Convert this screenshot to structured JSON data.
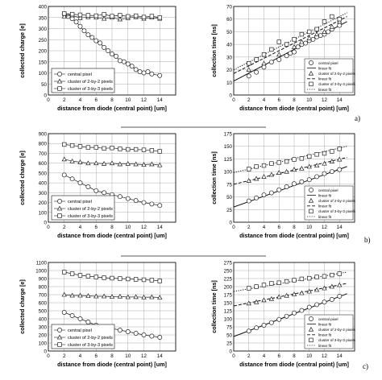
{
  "figure": {
    "panels": [
      {
        "letter": "a)"
      },
      {
        "letter": "b)"
      },
      {
        "letter": "c)"
      }
    ]
  },
  "chart_data": [
    {
      "type": "scatter",
      "row": 0,
      "side": "left",
      "xlabel": "distance from diode (central point) [um]",
      "ylabel": "collected charge [e]",
      "xlim": [
        0,
        16
      ],
      "ylim": [
        0,
        400
      ],
      "xticks": [
        0,
        2,
        4,
        6,
        8,
        10,
        12,
        14
      ],
      "yticks": [
        0,
        50,
        100,
        150,
        200,
        250,
        300,
        350,
        400
      ],
      "grid": true,
      "legend": {
        "position": "bottom-left",
        "entries": [
          "central pixel",
          "cluster of 2-by-2 pixels",
          "cluster of 3-by-3 pixels"
        ]
      },
      "series": [
        {
          "name": "central pixel",
          "marker": "circle",
          "x": [
            2,
            2.5,
            3,
            3.5,
            4,
            4.5,
            5,
            5.5,
            6,
            6.5,
            7,
            7.5,
            8,
            8.5,
            9,
            9.5,
            10,
            10.5,
            11,
            11.5,
            12,
            12.5,
            13,
            14
          ],
          "y": [
            365,
            355,
            345,
            330,
            310,
            290,
            272,
            260,
            245,
            235,
            215,
            200,
            185,
            175,
            155,
            150,
            140,
            130,
            115,
            105,
            100,
            105,
            95,
            88
          ]
        },
        {
          "name": "cluster of 2-by-2 pixels",
          "marker": "triangle",
          "x": [
            2,
            3,
            4,
            5,
            6,
            7,
            8,
            9,
            10,
            11,
            12,
            13,
            14
          ],
          "y": [
            355,
            360,
            348,
            352,
            350,
            345,
            350,
            342,
            348,
            352,
            345,
            350,
            345
          ]
        },
        {
          "name": "cluster of 3-by-3 pixels",
          "marker": "square",
          "x": [
            2,
            3,
            4,
            5,
            6,
            7,
            8,
            9,
            10,
            11,
            12,
            13,
            14
          ],
          "y": [
            368,
            365,
            362,
            360,
            358,
            364,
            356,
            360,
            355,
            358,
            352,
            356,
            350
          ]
        }
      ]
    },
    {
      "type": "scatter",
      "row": 0,
      "side": "right",
      "xlabel": "distance from diode (central point) [um]",
      "ylabel": "collection time [ns]",
      "xlim": [
        0,
        16
      ],
      "ylim": [
        0,
        70
      ],
      "xticks": [
        0,
        2,
        4,
        6,
        8,
        10,
        12,
        14
      ],
      "yticks": [
        0,
        10,
        20,
        30,
        40,
        50,
        60,
        70
      ],
      "grid": true,
      "legend": {
        "position": "bottom-right",
        "entries": [
          "central pixel",
          "linear fit",
          "cluster of 2-by-2 pixels",
          "linear fit",
          "cluster of 3-by-3 pixels",
          "linear fit"
        ]
      },
      "series": [
        {
          "name": "central pixel",
          "marker": "circle",
          "x": [
            2,
            3,
            4,
            5,
            6,
            7,
            7.5,
            8,
            8.5,
            9,
            9.5,
            10,
            10.5,
            11,
            11.5,
            12,
            12.5,
            13,
            14
          ],
          "y": [
            15,
            18,
            22,
            26,
            28,
            31,
            33,
            34,
            38,
            40,
            41,
            43,
            44,
            46,
            47,
            48,
            50,
            52,
            55
          ]
        },
        {
          "name": "cluster of 2-by-2 pixels",
          "marker": "triangle",
          "x": [
            2,
            4,
            6,
            8,
            9,
            10,
            11,
            12,
            13,
            14
          ],
          "y": [
            20,
            25,
            32,
            38,
            42,
            45,
            48,
            50,
            54,
            58
          ]
        },
        {
          "name": "cluster of 3-by-3 pixels",
          "marker": "square",
          "x": [
            2,
            3,
            4,
            5,
            6,
            7,
            8,
            9,
            10,
            11,
            12,
            13,
            14
          ],
          "y": [
            25,
            28,
            32,
            36,
            42,
            40,
            44,
            48,
            50,
            52,
            58,
            62,
            60
          ]
        }
      ],
      "fits": [
        {
          "label": "linear fit",
          "style": "solid",
          "x": [
            0,
            15
          ],
          "y": [
            11,
            58
          ]
        },
        {
          "label": "linear fit",
          "style": "dashed",
          "x": [
            0,
            15
          ],
          "y": [
            17,
            62
          ]
        },
        {
          "label": "linear fit",
          "style": "dotted",
          "x": [
            0,
            15
          ],
          "y": [
            20,
            65
          ]
        }
      ]
    },
    {
      "type": "scatter",
      "row": 1,
      "side": "left",
      "xlabel": "distance from diode (central point) [um]",
      "ylabel": "collected charge [e]",
      "xlim": [
        0,
        16
      ],
      "ylim": [
        0,
        900
      ],
      "xticks": [
        0,
        2,
        4,
        6,
        8,
        10,
        12,
        14
      ],
      "yticks": [
        0,
        100,
        200,
        300,
        400,
        500,
        600,
        700,
        800,
        900
      ],
      "grid": true,
      "legend": {
        "position": "bottom-left",
        "entries": [
          "central pixel",
          "cluster of 2-by-2 pixels",
          "cluster of 3-by-3 pixels"
        ]
      },
      "series": [
        {
          "name": "central pixel",
          "marker": "circle",
          "x": [
            2,
            3,
            4,
            5,
            6,
            7,
            8,
            9,
            10,
            11,
            12,
            13,
            14
          ],
          "y": [
            480,
            440,
            400,
            360,
            320,
            300,
            280,
            260,
            240,
            220,
            200,
            185,
            170
          ]
        },
        {
          "name": "cluster of 2-by-2 pixels",
          "marker": "triangle",
          "x": [
            2,
            3,
            4,
            5,
            6,
            7,
            8,
            9,
            10,
            11,
            12,
            13,
            14
          ],
          "y": [
            640,
            620,
            610,
            600,
            600,
            595,
            600,
            590,
            595,
            590,
            585,
            590,
            580
          ]
        },
        {
          "name": "cluster of 3-by-3 pixels",
          "marker": "square",
          "x": [
            2,
            3,
            4,
            5,
            6,
            7,
            8,
            9,
            10,
            11,
            12,
            13,
            14
          ],
          "y": [
            790,
            780,
            770,
            760,
            760,
            750,
            755,
            745,
            740,
            740,
            735,
            730,
            720
          ]
        }
      ]
    },
    {
      "type": "scatter",
      "row": 1,
      "side": "right",
      "xlabel": "distance from diode (central point) [um]",
      "ylabel": "collection time [ns]",
      "xlim": [
        0,
        16
      ],
      "ylim": [
        0,
        175
      ],
      "xticks": [
        0,
        2,
        4,
        6,
        8,
        10,
        12,
        14
      ],
      "yticks": [
        0,
        25,
        50,
        75,
        100,
        125,
        150,
        175
      ],
      "grid": true,
      "legend": {
        "position": "bottom-right",
        "entries": [
          "central pixel",
          "linear fit",
          "cluster of 2-by-2 pixels",
          "linear fit",
          "cluster of 3-by-3 pixels",
          "linear fit"
        ]
      },
      "series": [
        {
          "name": "central pixel",
          "marker": "circle",
          "x": [
            2,
            3,
            4,
            5,
            6,
            7,
            8,
            9,
            10,
            11,
            12,
            13,
            14
          ],
          "y": [
            42,
            48,
            54,
            58,
            64,
            70,
            76,
            80,
            84,
            90,
            96,
            100,
            104
          ]
        },
        {
          "name": "cluster of 2-by-2 pixels",
          "marker": "triangle",
          "x": [
            2,
            3,
            4,
            5,
            6,
            7,
            8,
            9,
            10,
            11,
            12,
            13,
            14
          ],
          "y": [
            82,
            86,
            90,
            94,
            98,
            100,
            104,
            106,
            110,
            112,
            116,
            120,
            124
          ]
        },
        {
          "name": "cluster of 3-by-3 pixels",
          "marker": "square",
          "x": [
            2,
            3,
            4,
            5,
            6,
            7,
            8,
            9,
            10,
            11,
            12,
            13,
            14
          ],
          "y": [
            105,
            110,
            112,
            116,
            118,
            120,
            124,
            126,
            130,
            134,
            136,
            140,
            145
          ]
        }
      ],
      "fits": [
        {
          "label": "linear fit",
          "style": "solid",
          "x": [
            0,
            15
          ],
          "y": [
            30,
            110
          ]
        },
        {
          "label": "linear fit",
          "style": "dashed",
          "x": [
            0,
            15
          ],
          "y": [
            75,
            128
          ]
        },
        {
          "label": "linear fit",
          "style": "dotted",
          "x": [
            0,
            15
          ],
          "y": [
            98,
            150
          ]
        }
      ]
    },
    {
      "type": "scatter",
      "row": 2,
      "side": "left",
      "xlabel": "distance from diode (central point) [um]",
      "ylabel": "collected charge [e]",
      "xlim": [
        0,
        16
      ],
      "ylim": [
        0,
        1100
      ],
      "xticks": [
        0,
        2,
        4,
        6,
        8,
        10,
        12,
        14
      ],
      "yticks": [
        0,
        100,
        200,
        300,
        400,
        500,
        600,
        700,
        800,
        900,
        1000,
        1100
      ],
      "grid": true,
      "legend": {
        "position": "bottom-left",
        "entries": [
          "central pixel",
          "cluster of 2-by-2 pixels",
          "cluster of 3-by-3 pixels"
        ]
      },
      "series": [
        {
          "name": "central pixel",
          "marker": "circle",
          "x": [
            2,
            3,
            4,
            5,
            6,
            7,
            8,
            9,
            10,
            11,
            12,
            13,
            14
          ],
          "y": [
            480,
            440,
            400,
            360,
            320,
            300,
            280,
            260,
            240,
            220,
            200,
            185,
            170
          ]
        },
        {
          "name": "cluster of 2-by-2 pixels",
          "marker": "triangle",
          "x": [
            2,
            3,
            4,
            5,
            6,
            7,
            8,
            9,
            10,
            11,
            12,
            13,
            14
          ],
          "y": [
            700,
            690,
            690,
            685,
            680,
            680,
            675,
            678,
            670,
            672,
            668,
            670,
            665
          ]
        },
        {
          "name": "cluster of 3-by-3 pixels",
          "marker": "square",
          "x": [
            2,
            3,
            4,
            5,
            6,
            7,
            8,
            9,
            10,
            11,
            12,
            13,
            14
          ],
          "y": [
            980,
            960,
            940,
            930,
            920,
            910,
            905,
            900,
            895,
            890,
            885,
            880,
            870
          ]
        }
      ]
    },
    {
      "type": "scatter",
      "row": 2,
      "side": "right",
      "xlabel": "distance from diode (central point) [um]",
      "ylabel": "collection time [ns]",
      "xlim": [
        0,
        16
      ],
      "ylim": [
        0,
        275
      ],
      "xticks": [
        0,
        2,
        4,
        6,
        8,
        10,
        12,
        14
      ],
      "yticks": [
        0,
        25,
        50,
        75,
        100,
        125,
        150,
        175,
        200,
        225,
        250,
        275
      ],
      "grid": true,
      "legend": {
        "position": "bottom-right",
        "entries": [
          "central pixel",
          "linear fit",
          "cluster of 2-by-2 pixels",
          "linear fit",
          "cluster of 3-by-3 pixels",
          "linear fit"
        ]
      },
      "series": [
        {
          "name": "central pixel",
          "marker": "circle",
          "x": [
            2,
            3,
            4,
            5,
            6,
            7,
            8,
            9,
            10,
            11,
            12,
            13,
            14
          ],
          "y": [
            62,
            72,
            80,
            88,
            98,
            108,
            118,
            126,
            136,
            144,
            152,
            160,
            170
          ]
        },
        {
          "name": "cluster of 2-by-2 pixels",
          "marker": "triangle",
          "x": [
            2,
            3,
            4,
            5,
            6,
            7,
            8,
            9,
            10,
            11,
            12,
            13,
            14
          ],
          "y": [
            148,
            152,
            158,
            162,
            168,
            172,
            176,
            180,
            185,
            190,
            195,
            200,
            205
          ]
        },
        {
          "name": "cluster of 3-by-3 pixels",
          "marker": "square",
          "x": [
            2,
            3,
            4,
            5,
            6,
            7,
            8,
            9,
            10,
            11,
            12,
            13,
            14
          ],
          "y": [
            195,
            200,
            205,
            210,
            212,
            216,
            220,
            224,
            226,
            230,
            232,
            236,
            240
          ]
        }
      ],
      "fits": [
        {
          "label": "linear fit",
          "style": "solid",
          "x": [
            0,
            15
          ],
          "y": [
            45,
            178
          ]
        },
        {
          "label": "linear fit",
          "style": "dashed",
          "x": [
            0,
            15
          ],
          "y": [
            140,
            210
          ]
        },
        {
          "label": "linear fit",
          "style": "dotted",
          "x": [
            0,
            15
          ],
          "y": [
            185,
            245
          ]
        }
      ]
    }
  ]
}
